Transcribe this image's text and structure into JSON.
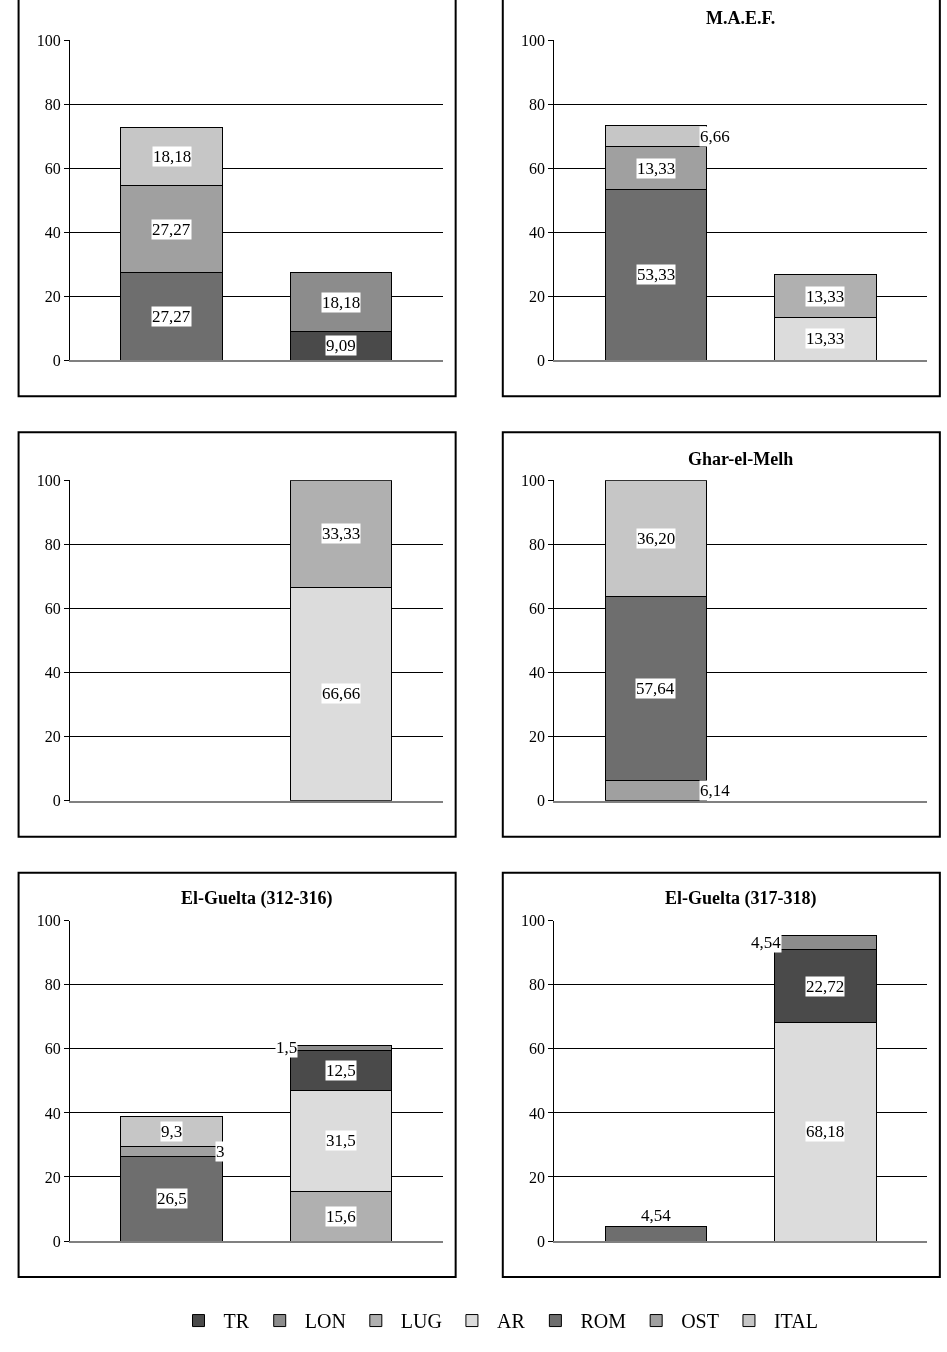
{
  "chart_data": [
    {
      "type": "bar",
      "stacked": true,
      "categories": [
        null,
        null
      ],
      "ylim": [
        0,
        100
      ],
      "yticks": [
        0,
        20,
        40,
        60,
        80,
        100
      ],
      "grid": "y",
      "legend": "bottom",
      "series": [
        {
          "name": "TR",
          "color": "#4a4a4a",
          "values": [
            null,
            9.09
          ],
          "value_labels": [
            null,
            "9,09"
          ]
        },
        {
          "name": "LON",
          "color": "#8c8c8c",
          "values": [
            null,
            18.18
          ],
          "value_labels": [
            null,
            "18,18"
          ]
        },
        {
          "name": "LUG",
          "color": "#b0b0b0",
          "values": [
            null,
            null
          ]
        },
        {
          "name": "AR",
          "color": "#dcdcdc",
          "values": [
            null,
            null
          ]
        },
        {
          "name": "ROM",
          "color": "#6e6e6e",
          "values": [
            27.27,
            null
          ],
          "value_labels": [
            "27,27",
            null
          ]
        },
        {
          "name": "OST",
          "color": "#a0a0a0",
          "values": [
            27.27,
            null
          ],
          "value_labels": [
            "27,27",
            null
          ]
        },
        {
          "name": "ITAL",
          "color": "#c6c6c6",
          "values": [
            18.18,
            null
          ],
          "value_labels": [
            "18,18",
            null
          ]
        }
      ]
    },
    {
      "type": "bar",
      "stacked": true,
      "title": "M.A.E.F.",
      "categories": [
        null,
        null
      ],
      "ylim": [
        0,
        100
      ],
      "yticks": [
        0,
        20,
        40,
        60,
        80,
        100
      ],
      "grid": "y",
      "series": [
        {
          "color": "#6e6e6e",
          "values": [
            53.33,
            null
          ],
          "value_labels": [
            "53,33",
            null
          ]
        },
        {
          "color": "#a0a0a0",
          "values": [
            13.33,
            null
          ],
          "value_labels": [
            "13,33",
            null
          ]
        },
        {
          "color": "#c6c6c6",
          "values": [
            6.66,
            null
          ],
          "value_labels": [
            "6,66",
            null
          ]
        },
        {
          "color": "#dcdcdc",
          "values": [
            null,
            13.33
          ],
          "value_labels": [
            null,
            "13,33"
          ]
        },
        {
          "color": "#b0b0b0",
          "values": [
            null,
            13.33
          ],
          "value_labels": [
            null,
            "13,33"
          ]
        }
      ]
    },
    {
      "type": "bar",
      "stacked": true,
      "categories": [
        null,
        null
      ],
      "ylim": [
        0,
        100
      ],
      "yticks": [
        0,
        20,
        40,
        60,
        80,
        100
      ],
      "grid": "y",
      "series": [
        {
          "color": "#dcdcdc",
          "values": [
            null,
            66.66
          ],
          "value_labels": [
            null,
            "66,66"
          ]
        },
        {
          "color": "#b0b0b0",
          "values": [
            null,
            33.33
          ],
          "value_labels": [
            null,
            "33,33"
          ]
        }
      ]
    },
    {
      "type": "bar",
      "stacked": true,
      "title": "Ghar-el-Melh",
      "categories": [
        null,
        null
      ],
      "ylim": [
        0,
        100
      ],
      "yticks": [
        0,
        20,
        40,
        60,
        80,
        100
      ],
      "grid": "y",
      "series": [
        {
          "color": "#a0a0a0",
          "values": [
            6.14,
            null
          ],
          "value_labels": [
            "6,14",
            null
          ]
        },
        {
          "color": "#6e6e6e",
          "values": [
            57.64,
            null
          ],
          "value_labels": [
            "57,64",
            null
          ]
        },
        {
          "color": "#c6c6c6",
          "values": [
            36.2,
            null
          ],
          "value_labels": [
            "36,20",
            null
          ]
        }
      ]
    },
    {
      "type": "bar",
      "stacked": true,
      "title": "El-Guelta (312-316)",
      "categories": [
        null,
        null
      ],
      "ylim": [
        0,
        100
      ],
      "yticks": [
        0,
        20,
        40,
        60,
        80,
        100
      ],
      "grid": "y",
      "series": [
        {
          "color": "#6e6e6e",
          "values": [
            26.5,
            null
          ],
          "value_labels": [
            "26,5",
            null
          ]
        },
        {
          "color": "#a0a0a0",
          "values": [
            3,
            null
          ],
          "value_labels": [
            "3",
            null
          ]
        },
        {
          "color": "#c6c6c6",
          "values": [
            9.3,
            null
          ],
          "value_labels": [
            "9,3",
            null
          ]
        },
        {
          "color": "#b0b0b0",
          "values": [
            null,
            15.6
          ],
          "value_labels": [
            null,
            "15,6"
          ]
        },
        {
          "color": "#dcdcdc",
          "values": [
            null,
            31.5
          ],
          "value_labels": [
            null,
            "31,5"
          ]
        },
        {
          "color": "#4a4a4a",
          "values": [
            null,
            12.5
          ],
          "value_labels": [
            null,
            "12,5"
          ]
        },
        {
          "color": "#8c8c8c",
          "values": [
            null,
            1.5
          ],
          "value_labels": [
            null,
            "1,5"
          ]
        }
      ]
    },
    {
      "type": "bar",
      "stacked": true,
      "title": "El-Guelta (317-318)",
      "categories": [
        null,
        null
      ],
      "ylim": [
        0,
        100
      ],
      "yticks": [
        0,
        20,
        40,
        60,
        80,
        100
      ],
      "grid": "y",
      "series": [
        {
          "color": "#6e6e6e",
          "values": [
            4.54,
            null
          ],
          "value_labels": [
            "4,54",
            null
          ]
        },
        {
          "color": "#dcdcdc",
          "values": [
            null,
            68.18
          ],
          "value_labels": [
            null,
            "68,18"
          ]
        },
        {
          "color": "#4a4a4a",
          "values": [
            null,
            22.72
          ],
          "value_labels": [
            null,
            "22,72"
          ]
        },
        {
          "color": "#8c8c8c",
          "values": [
            null,
            4.54
          ],
          "value_labels": [
            null,
            "4,54"
          ]
        }
      ]
    }
  ]
}
